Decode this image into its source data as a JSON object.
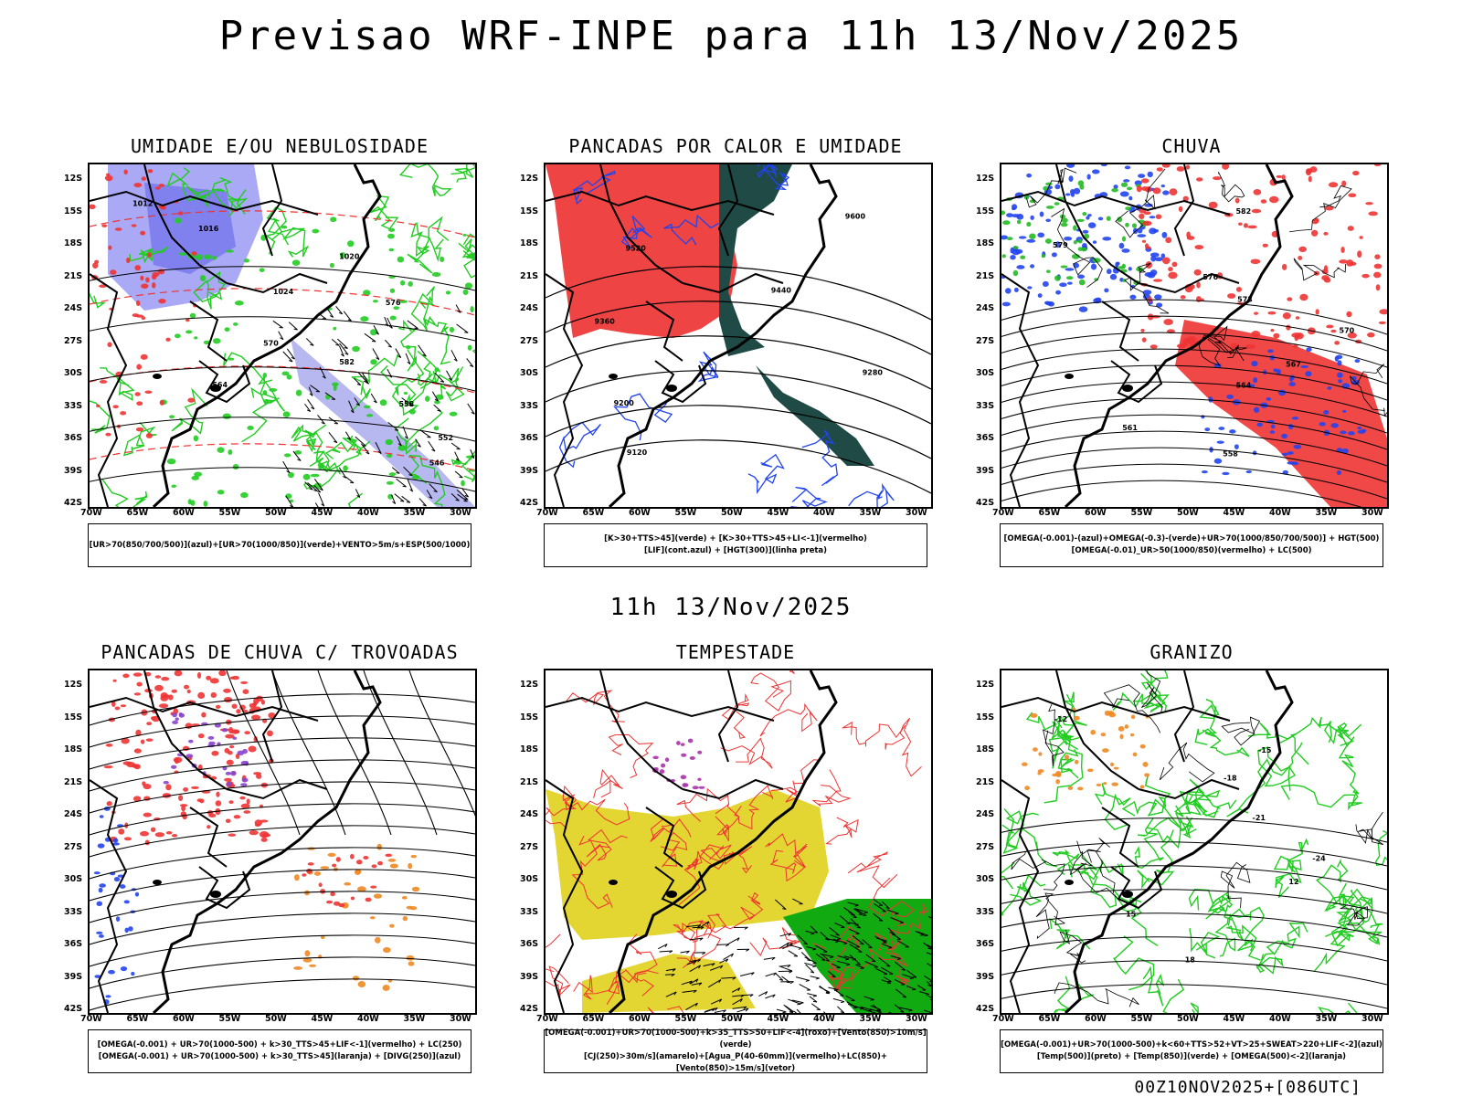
{
  "header": {
    "title": "Previsao WRF-INPE  para 11h 13/Nov/2025"
  },
  "middle_label": "11h 13/Nov/2025",
  "run_info": "00Z10NOV2025+[086UTC]",
  "axes": {
    "latitudes": [
      "12S",
      "15S",
      "18S",
      "21S",
      "24S",
      "27S",
      "30S",
      "33S",
      "36S",
      "39S",
      "42S"
    ],
    "longitudes": [
      "70W",
      "65W",
      "60W",
      "55W",
      "50W",
      "45W",
      "40W",
      "35W",
      "30W"
    ]
  },
  "panels": [
    {
      "id": "umidade",
      "title": "UMIDADE E/OU NEBULOSIDADE",
      "legend": [
        "[UR>70(850/700/500)](azul)+[UR>70(1000/850)](verde)+VENTO>5m/s+ESP(500/1000)"
      ]
    },
    {
      "id": "pancadas-calor",
      "title": "PANCADAS POR CALOR E UMIDADE",
      "legend": [
        "[K>30+TTS>45](verde) + [K>30+TTS>45+LI<-1](vermelho)",
        "[LIF](cont.azul) + [HGT(300)](linha preta)"
      ]
    },
    {
      "id": "chuva",
      "title": "CHUVA",
      "legend": [
        "[OMEGA(-0.001)-(azul)+OMEGA(-0.3)-(verde)+UR>70(1000/850/700/500)] + HGT(500)",
        "[OMEGA(-0.01)_UR>50(1000/850)(vermelho) + LC(500)"
      ]
    },
    {
      "id": "trovoadas",
      "title": "PANCADAS DE CHUVA C/ TROVOADAS",
      "legend": [
        "[OMEGA(-0.001) + UR>70(1000-500) + k>30_TTS>45+LIF<-1](vermelho) + LC(250)",
        "[OMEGA(-0.001) + UR>70(1000-500) + k>30_TTS>45](laranja) + [DIVG(250)](azul)"
      ]
    },
    {
      "id": "tempestade",
      "title": "TEMPESTADE",
      "legend": [
        "[OMEGA(-0.001)+UR>70(1000-500)+k>35_TTS>50+LIF<-4](roxo)+[Vento(850)>10m/s](verde)",
        "[CJ(250)>30m/s](amarelo)+[Agua_P(40-60mm)](vermelho)+LC(850)+[Vento(850)>15m/s](vetor)"
      ]
    },
    {
      "id": "granizo",
      "title": "GRANIZO",
      "legend": [
        "[OMEGA(-0.001)+UR>70(1000-500)+k<60+TTS>52+VT>25+SWEAT>220+LIF<-2](azul)",
        "[Temp(500)](preto) + [Temp(850)](verde) + [OMEGA(500)<-2](laranja)"
      ]
    }
  ],
  "contour_labels": {
    "umidade": [
      "1012",
      "1016",
      "1020",
      "1024",
      "576",
      "570",
      "582",
      "564",
      "558",
      "552",
      "546"
    ],
    "pancadas-calor": [
      "9600",
      "9520",
      "9440",
      "9360",
      "9280",
      "9200",
      "9120"
    ],
    "chuva": [
      "582",
      "579",
      "576",
      "573",
      "570",
      "567",
      "564",
      "561",
      "558"
    ],
    "granizo": [
      "-12",
      "-15",
      "-18",
      "-21",
      "-24",
      "12",
      "15",
      "18"
    ]
  }
}
